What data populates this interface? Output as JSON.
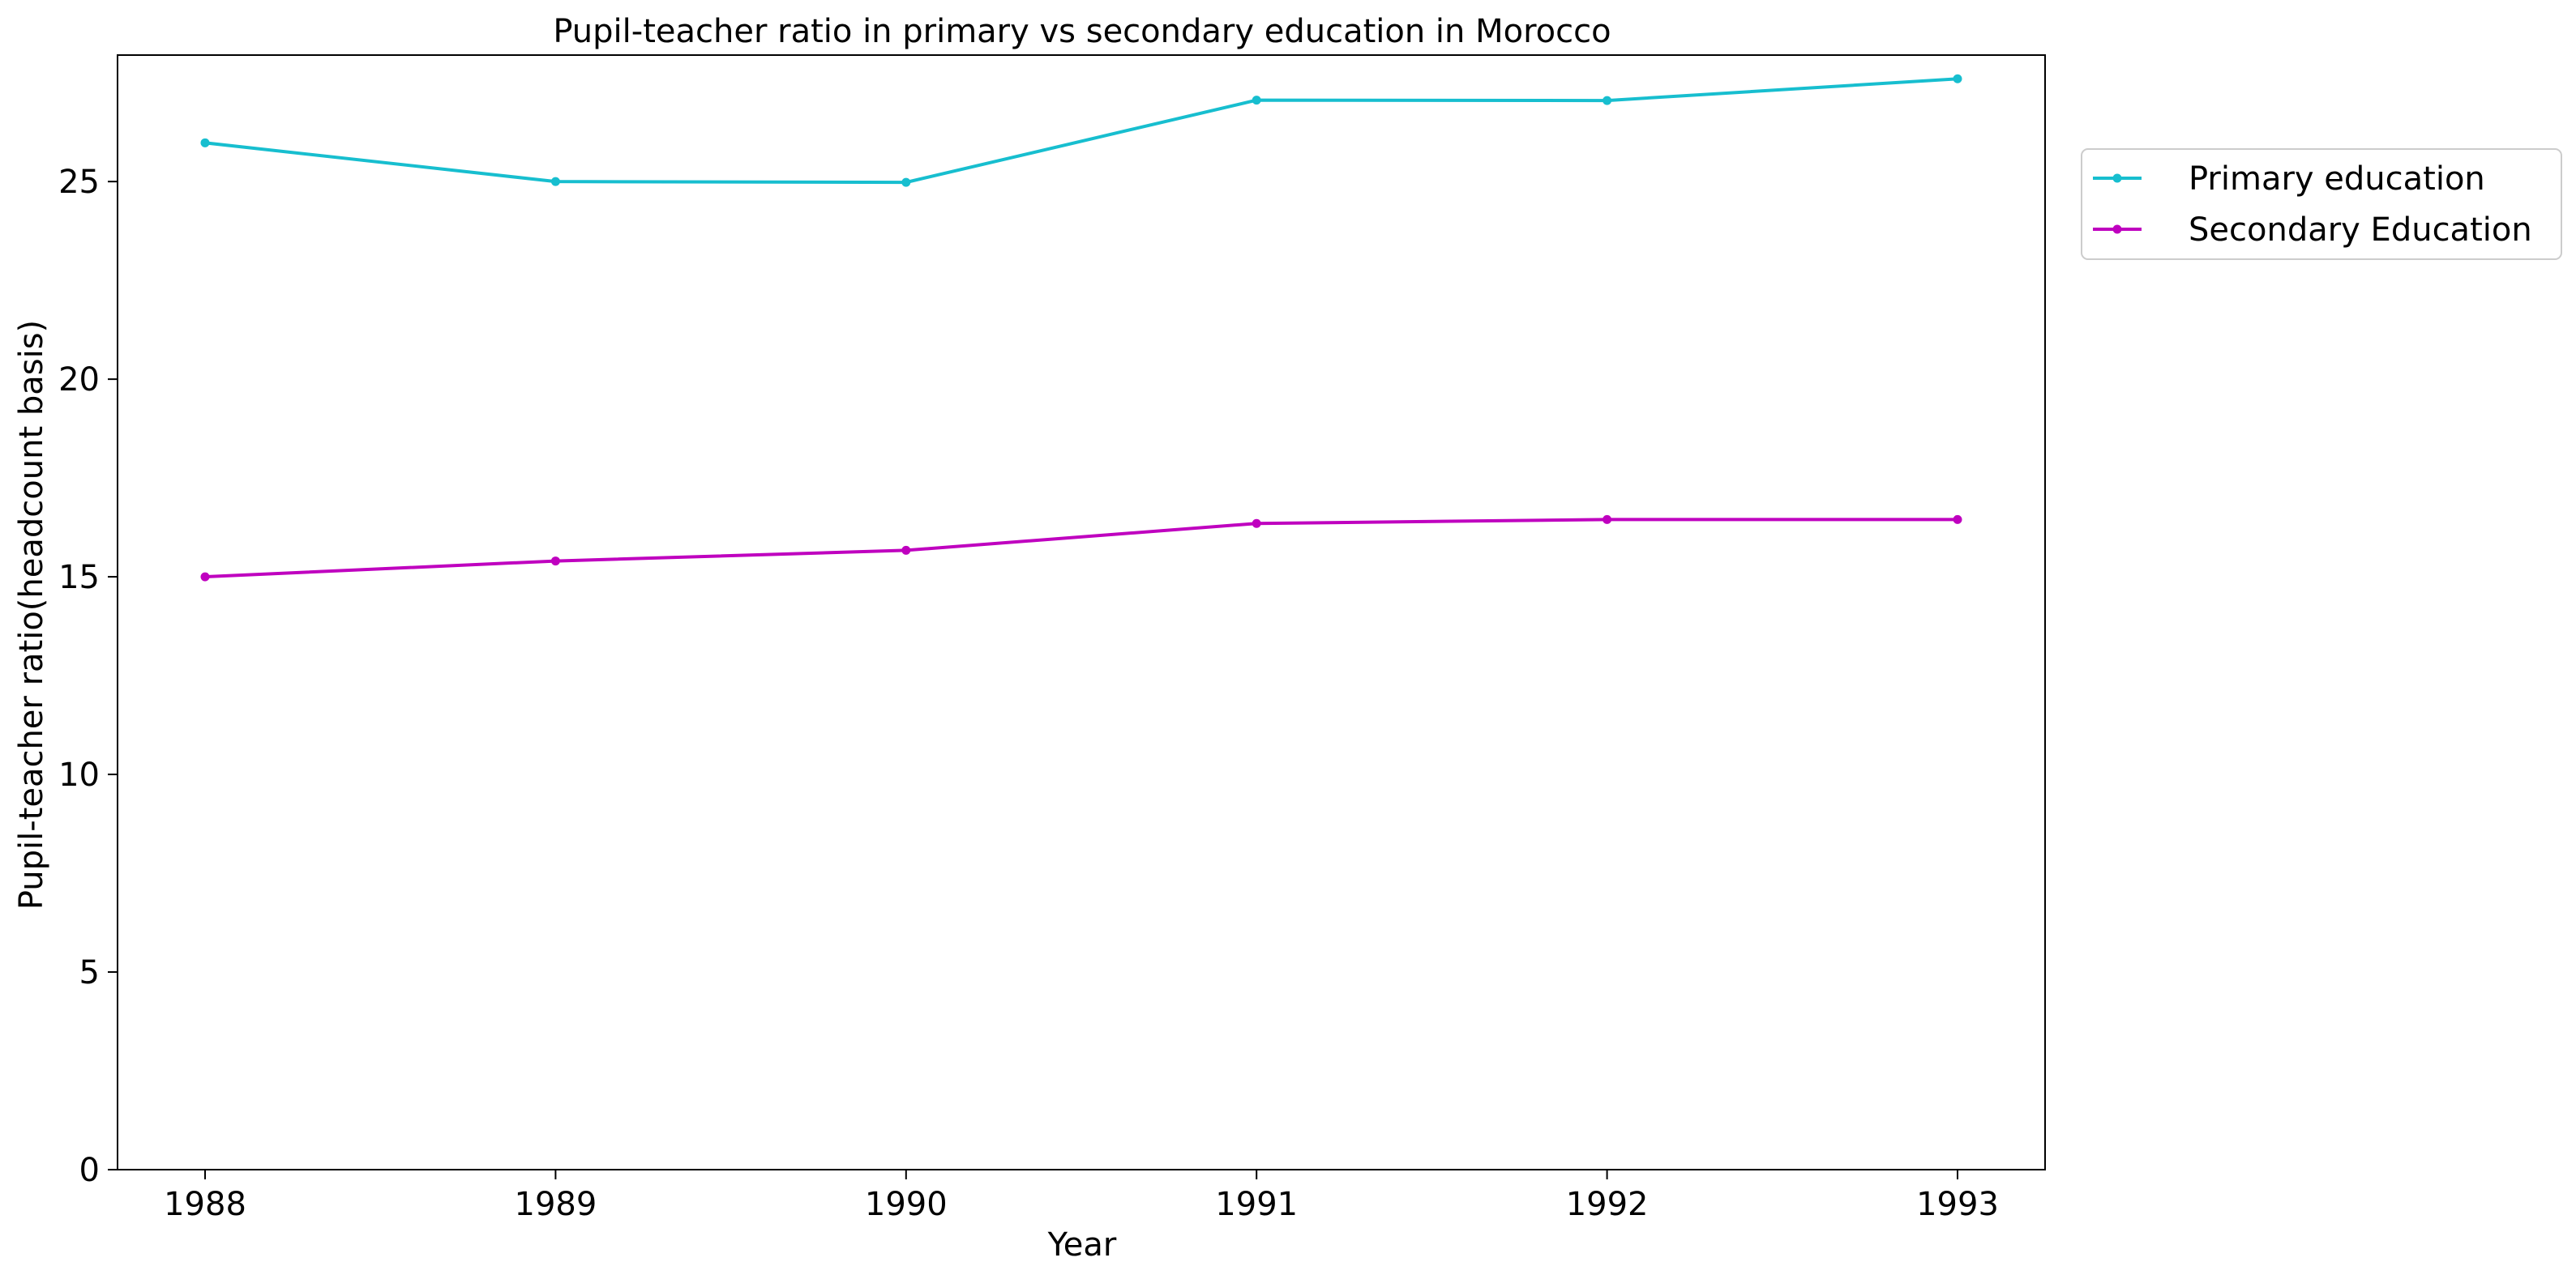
{
  "chart_data": {
    "type": "line",
    "title": "Pupil-teacher ratio in primary vs secondary education in Morocco",
    "xlabel": "Year",
    "ylabel": "Pupil-teacher ratio(headcount basis)",
    "x": [
      "1988",
      "1989",
      "1990",
      "1991",
      "1992",
      "1993"
    ],
    "ylim": [
      0,
      28.2
    ],
    "yticks": [
      "0",
      "5",
      "10",
      "15",
      "20",
      "25"
    ],
    "grid": false,
    "legend_position": "upper-right, outside plot area",
    "series": [
      {
        "name": "Primary education",
        "color": "#17becf",
        "marker": "circle",
        "values": [
          25.98,
          25.0,
          24.98,
          27.06,
          27.05,
          27.6
        ]
      },
      {
        "name": "Secondary Education",
        "color": "#bf00bf",
        "marker": "circle",
        "values": [
          15.0,
          15.4,
          15.67,
          16.35,
          16.45,
          16.45
        ]
      }
    ]
  }
}
